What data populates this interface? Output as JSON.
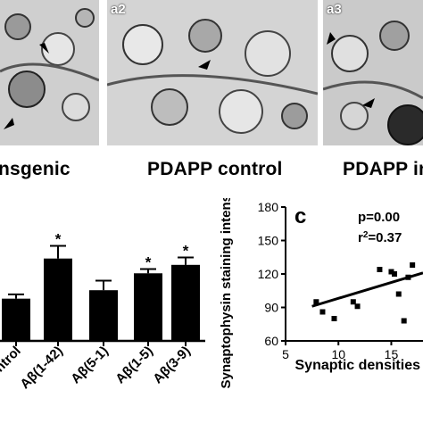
{
  "panels": [
    {
      "tag": "",
      "caption": "nsgenic"
    },
    {
      "tag": "a2",
      "caption": "PDAPP control"
    },
    {
      "tag": "a3",
      "caption": "PDAPP in"
    }
  ],
  "panel_c_label": "c",
  "chart_data": [
    {
      "type": "bar",
      "categories": [
        "ntrol",
        "Aβ(1-42)",
        "Aβ(5-1)",
        "Aβ(1-5)",
        "Aβ(3-9)"
      ],
      "values": [
        100,
        138,
        108,
        124,
        132
      ],
      "errors": [
        4,
        12,
        9,
        4,
        7
      ],
      "significance": [
        "",
        "*",
        "",
        "*",
        "*"
      ],
      "ylim": [
        60,
        180
      ],
      "xlabel": "",
      "ylabel": "",
      "title": "",
      "bar_color": "#000000"
    },
    {
      "type": "scatter",
      "title": "",
      "xlabel": "Synaptic densities",
      "ylabel": "Synaptophysin staining intensity",
      "xlim": [
        5,
        18
      ],
      "ylim": [
        60,
        180
      ],
      "xticks": [
        5,
        10,
        15
      ],
      "yticks": [
        60,
        90,
        120,
        150,
        180
      ],
      "points": [
        {
          "x": 7.9,
          "y": 95
        },
        {
          "x": 8.5,
          "y": 86
        },
        {
          "x": 9.6,
          "y": 80
        },
        {
          "x": 11.4,
          "y": 95
        },
        {
          "x": 11.8,
          "y": 91
        },
        {
          "x": 13.9,
          "y": 124
        },
        {
          "x": 15.0,
          "y": 122
        },
        {
          "x": 15.3,
          "y": 120
        },
        {
          "x": 15.7,
          "y": 102
        },
        {
          "x": 16.2,
          "y": 78
        },
        {
          "x": 16.6,
          "y": 117
        },
        {
          "x": 17.0,
          "y": 128
        }
      ],
      "trendline": {
        "x": [
          7.5,
          18
        ],
        "y": [
          91,
          121
        ]
      },
      "stats": {
        "p": "p=0.00",
        "r2_prefix": "r",
        "r2_sup": "2",
        "r2_value": "=0.37"
      }
    }
  ]
}
